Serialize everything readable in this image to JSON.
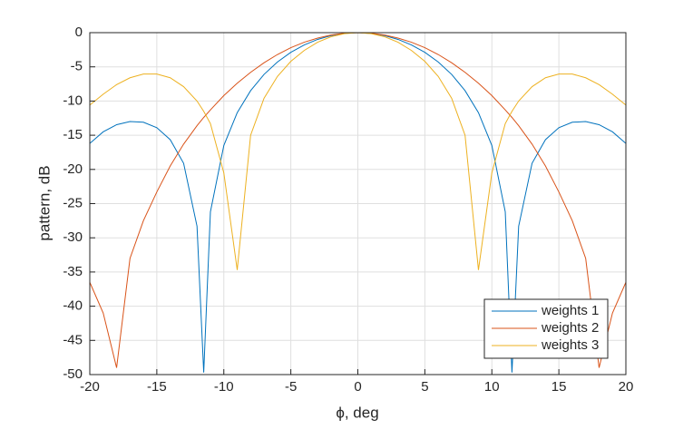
{
  "chart_data": {
    "type": "line",
    "x_label": "ϕ, deg",
    "y_label": "pattern, dB",
    "x": [
      -20,
      -19,
      -18,
      -17,
      -16,
      -15,
      -14,
      -13,
      -12,
      -11.5,
      -11,
      -10,
      -9,
      -8,
      -7,
      -6,
      -5,
      -4,
      -3,
      -2,
      -1,
      0,
      1,
      2,
      3,
      4,
      5,
      6,
      7,
      8,
      9,
      10,
      11,
      11.5,
      12,
      13,
      14,
      15,
      16,
      17,
      18,
      19,
      20
    ],
    "series": [
      {
        "name": "weights 1",
        "color": "#0072BD",
        "values": [
          -16.2,
          -14.5,
          -13.46,
          -13.0,
          -13.1,
          -13.9,
          -15.65,
          -19.1,
          -28.3,
          -49.7,
          -26.2,
          -16.5,
          -11.7,
          -8.48,
          -6.11,
          -4.29,
          -2.88,
          -1.8,
          -0.99,
          -0.43,
          -0.11,
          0,
          -0.11,
          -0.43,
          -0.99,
          -1.8,
          -2.88,
          -4.29,
          -6.11,
          -8.48,
          -11.7,
          -16.5,
          -26.2,
          -49.7,
          -28.3,
          -19.1,
          -15.65,
          -13.9,
          -13.1,
          -13.0,
          -13.46,
          -14.5,
          -16.2
        ]
      },
      {
        "name": "weights 2",
        "color": "#D95319",
        "values": [
          -36.5,
          -41,
          -49,
          -33,
          -27.5,
          -23.3,
          -19.5,
          -16.3,
          -13.6,
          -12.4,
          -11.3,
          -9.2,
          -7.4,
          -5.8,
          -4.4,
          -3.2,
          -2.2,
          -1.4,
          -0.8,
          -0.35,
          -0.08,
          0,
          -0.08,
          -0.35,
          -0.8,
          -1.4,
          -2.2,
          -3.2,
          -4.4,
          -5.8,
          -7.4,
          -9.2,
          -11.3,
          -12.4,
          -13.6,
          -16.3,
          -19.5,
          -23.3,
          -27.5,
          -33,
          -49,
          -41,
          -36.5
        ]
      },
      {
        "name": "weights 3",
        "color": "#EDB120",
        "values": [
          -10.6,
          -9,
          -7.6,
          -6.6,
          -6.05,
          -6.05,
          -6.6,
          -7.9,
          -10,
          -11.5,
          -13.3,
          -20.5,
          -34.7,
          -15,
          -9.6,
          -6.4,
          -4.2,
          -2.6,
          -1.4,
          -0.6,
          -0.15,
          0,
          -0.15,
          -0.6,
          -1.4,
          -2.6,
          -4.2,
          -6.4,
          -9.6,
          -15,
          -34.7,
          -20.5,
          -13.3,
          -11.5,
          -10,
          -7.9,
          -6.6,
          -6.05,
          -6.05,
          -6.6,
          -7.6,
          -9,
          -10.6
        ]
      }
    ],
    "xlim": [
      -20,
      20
    ],
    "xticks": [
      -20,
      -15,
      -10,
      -5,
      0,
      5,
      10,
      15,
      20
    ],
    "ylim": [
      -50,
      0
    ],
    "yticks": [
      -50,
      -45,
      -40,
      -35,
      -30,
      -25,
      -20,
      -15,
      -10,
      -5,
      0
    ],
    "grid": true,
    "legend": "southeast"
  }
}
